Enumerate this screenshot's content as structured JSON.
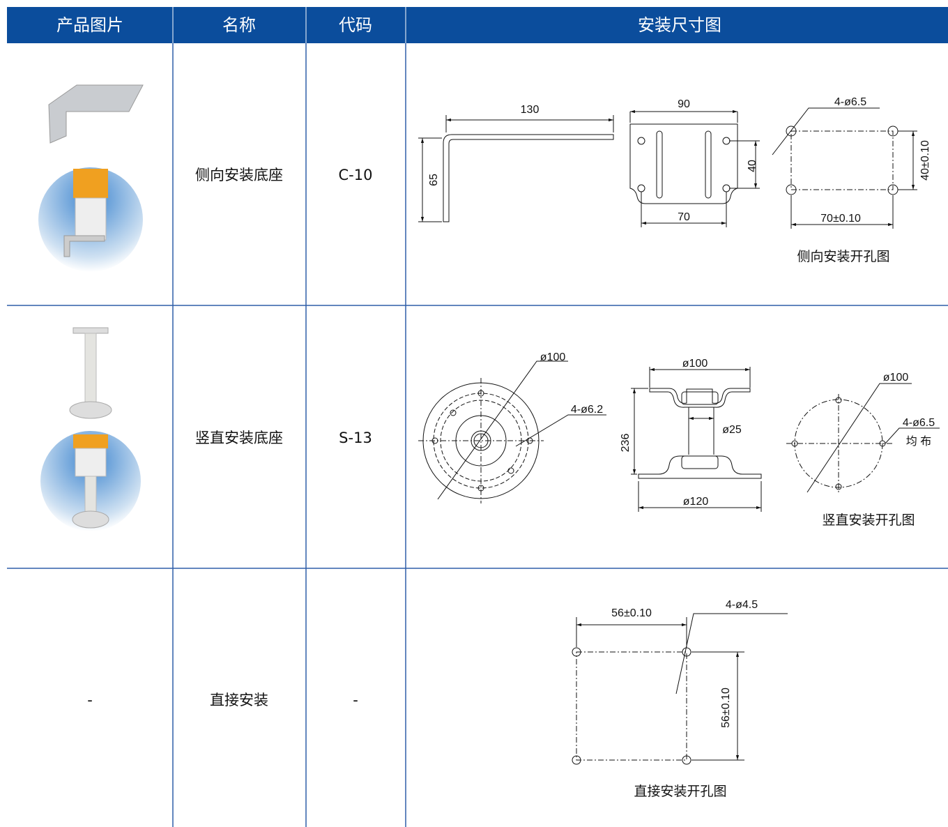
{
  "table": {
    "headers": [
      "产品图片",
      "名称",
      "代码",
      "安装尺寸图"
    ],
    "rows": [
      {
        "name": "侧向安装底座",
        "code": "C-10",
        "drawing": {
          "labels": [
            "130",
            "65",
            "90",
            "40",
            "70",
            "4-ø6.5",
            "40±0.10",
            "70±0.10"
          ],
          "caption": "侧向安装开孔图"
        }
      },
      {
        "name": "竖直安装底座",
        "code": "S-13",
        "drawing": {
          "labels": [
            "ø100",
            "4-ø6.2",
            "ø100",
            "236",
            "ø25",
            "ø120",
            "ø100",
            "4-ø6.5",
            "均 布"
          ],
          "caption": "竖直安装开孔图"
        }
      },
      {
        "image": "-",
        "name": "直接安装",
        "code": "-",
        "drawing": {
          "labels": [
            "56±0.10",
            "4-ø4.5",
            "56±0.10"
          ],
          "caption": "直接安装开孔图"
        }
      }
    ]
  }
}
